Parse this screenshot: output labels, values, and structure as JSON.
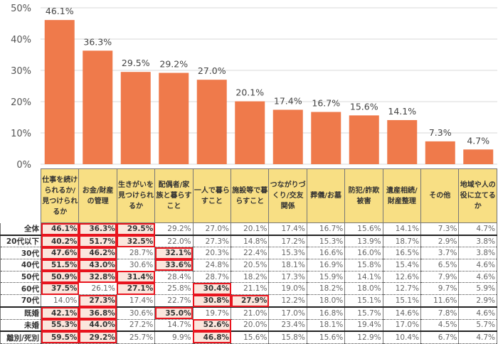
{
  "chart_data": {
    "type": "bar",
    "ylim": [
      0,
      50
    ],
    "yticks": [
      "0%",
      "10%",
      "20%",
      "30%",
      "40%",
      "50%"
    ],
    "grid": true,
    "bar_color": "#ef7a4b",
    "categories": [
      "仕事を続けられるか/見つけられるか",
      "お金/財産の管理",
      "生きがいを見つけられるか",
      "配偶者/家族と暮らすこと",
      "一人で暮らすこと",
      "施設等で暮らすこと",
      "つながりづくり/交友関係",
      "葬儀/お墓",
      "防犯/詐欺被害",
      "遺産相続/財産整理",
      "その他",
      "地域や人の役に立てるか"
    ],
    "values": [
      46.1,
      36.3,
      29.5,
      29.2,
      27.0,
      20.1,
      17.4,
      16.7,
      15.6,
      14.1,
      7.3,
      4.7
    ],
    "labels": [
      "46.1%",
      "36.3%",
      "29.5%",
      "29.2%",
      "27.0%",
      "20.1%",
      "17.4%",
      "16.7%",
      "15.6%",
      "14.1%",
      "7.3%",
      "4.7%"
    ]
  },
  "table": {
    "header_color": "#f8df84",
    "highlight_color": "#fbe6dd",
    "highlight_border": "#e8141e",
    "rows": [
      {
        "label": "全体",
        "values": [
          "46.1%",
          "36.3%",
          "29.5%",
          "29.2%",
          "27.0%",
          "20.1%",
          "17.4%",
          "16.7%",
          "15.6%",
          "14.1%",
          "7.3%",
          "4.7%"
        ],
        "highlight": [
          0,
          1,
          2
        ]
      },
      {
        "label": "20代以下",
        "values": [
          "40.2%",
          "51.7%",
          "32.5%",
          "22.0%",
          "27.3%",
          "14.8%",
          "17.2%",
          "15.3%",
          "13.9%",
          "18.7%",
          "2.9%",
          "3.8%"
        ],
        "highlight": [
          0,
          1,
          2
        ]
      },
      {
        "label": "30代",
        "values": [
          "47.6%",
          "46.2%",
          "28.7%",
          "32.1%",
          "20.3%",
          "22.4%",
          "15.3%",
          "16.6%",
          "16.0%",
          "16.5%",
          "3.7%",
          "3.8%"
        ],
        "highlight": [
          0,
          1,
          3
        ]
      },
      {
        "label": "40代",
        "values": [
          "51.5%",
          "43.0%",
          "30.6%",
          "33.6%",
          "24.8%",
          "20.5%",
          "18.1%",
          "16.9%",
          "15.8%",
          "15.4%",
          "6.5%",
          "4.6%"
        ],
        "highlight": [
          0,
          1,
          3
        ]
      },
      {
        "label": "50代",
        "values": [
          "50.9%",
          "32.8%",
          "31.4%",
          "28.4%",
          "28.7%",
          "18.2%",
          "17.3%",
          "15.9%",
          "14.1%",
          "12.6%",
          "7.9%",
          "4.6%"
        ],
        "highlight": [
          0,
          1,
          2
        ]
      },
      {
        "label": "60代",
        "values": [
          "37.5%",
          "26.1%",
          "27.1%",
          "25.8%",
          "30.4%",
          "21.1%",
          "19.0%",
          "18.2%",
          "18.0%",
          "12.7%",
          "9.7%",
          "5.9%"
        ],
        "highlight": [
          0,
          2,
          4
        ]
      },
      {
        "label": "70代",
        "values": [
          "14.0%",
          "27.3%",
          "17.4%",
          "22.7%",
          "30.8%",
          "27.9%",
          "12.2%",
          "18.0%",
          "15.1%",
          "15.1%",
          "11.6%",
          "2.9%"
        ],
        "highlight": [
          1,
          4,
          5
        ]
      },
      {
        "label": "既婚",
        "values": [
          "42.1%",
          "36.8%",
          "30.6%",
          "35.0%",
          "19.7%",
          "21.0%",
          "17.0%",
          "16.8%",
          "15.7%",
          "14.6%",
          "7.8%",
          "4.6%"
        ],
        "highlight": [
          0,
          1,
          3
        ]
      },
      {
        "label": "未婚",
        "values": [
          "55.3%",
          "44.0%",
          "27.2%",
          "14.7%",
          "52.6%",
          "20.0%",
          "23.4%",
          "18.1%",
          "19.4%",
          "17.0%",
          "4.5%",
          "5.7%"
        ],
        "highlight": [
          0,
          1,
          4
        ]
      },
      {
        "label": "離別/死別",
        "values": [
          "59.5%",
          "29.2%",
          "25.7%",
          "9.9%",
          "46.8%",
          "15.6%",
          "15.8%",
          "15.6%",
          "12.9%",
          "10.4%",
          "6.7%",
          "4.7%"
        ],
        "highlight": [
          0,
          1,
          4
        ]
      }
    ]
  }
}
